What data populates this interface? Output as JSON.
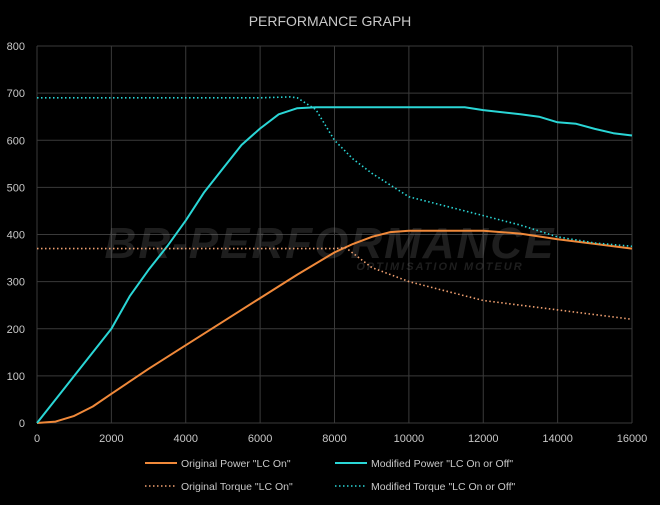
{
  "chart_data": {
    "type": "line",
    "title": "PERFORMANCE GRAPH",
    "xlim": [
      0,
      16000
    ],
    "ylim": [
      0,
      800
    ],
    "x_ticks": [
      0,
      2000,
      4000,
      6000,
      8000,
      10000,
      12000,
      14000,
      16000
    ],
    "y_ticks": [
      0,
      100,
      200,
      300,
      400,
      500,
      600,
      700,
      800
    ],
    "grid": true,
    "legend_position": "bottom",
    "watermark": "BR-PERFORMANCE OPTIMISATION MOTEUR",
    "series": [
      {
        "name": "Original Power \"LC On\"",
        "color": "#f0893a",
        "style": "solid",
        "x": [
          0,
          500,
          1000,
          1500,
          2000,
          3000,
          4000,
          5000,
          6000,
          7000,
          8000,
          8500,
          9000,
          9500,
          10000,
          11000,
          12000,
          13000,
          14000,
          15000,
          16000
        ],
        "y": [
          0,
          3,
          15,
          35,
          62,
          115,
          165,
          215,
          265,
          315,
          362,
          380,
          395,
          405,
          408,
          408,
          408,
          402,
          390,
          380,
          370
        ]
      },
      {
        "name": "Modified Power \"LC On or Off\"",
        "color": "#2ad6d6",
        "style": "solid",
        "x": [
          0,
          1000,
          2000,
          2500,
          3000,
          3500,
          4000,
          4500,
          5000,
          5500,
          6000,
          6500,
          7000,
          7500,
          8000,
          9000,
          10000,
          11000,
          11500,
          12000,
          13000,
          13500,
          14000,
          14500,
          15000,
          15500,
          16000
        ],
        "y": [
          0,
          100,
          200,
          270,
          325,
          375,
          430,
          490,
          540,
          590,
          625,
          655,
          668,
          670,
          670,
          670,
          670,
          670,
          670,
          664,
          655,
          650,
          638,
          635,
          624,
          615,
          610
        ]
      },
      {
        "name": "Original Torque \"LC On\"",
        "color": "#f0a070",
        "style": "dotted",
        "x": [
          0,
          2000,
          4000,
          6000,
          8000,
          8300,
          8500,
          9000,
          10000,
          11000,
          12000,
          13000,
          14000,
          15000,
          16000
        ],
        "y": [
          370,
          370,
          370,
          370,
          370,
          372,
          360,
          330,
          300,
          280,
          260,
          250,
          240,
          230,
          220
        ]
      },
      {
        "name": "Modified Torque \"LC On or Off\"",
        "color": "#2ad6d6",
        "style": "dotted",
        "x": [
          0,
          2000,
          4000,
          6000,
          6800,
          7000,
          7500,
          8000,
          8500,
          9000,
          10000,
          11000,
          12000,
          13000,
          14000,
          15000,
          16000
        ],
        "y": [
          690,
          690,
          690,
          690,
          692,
          690,
          665,
          600,
          560,
          530,
          480,
          460,
          440,
          420,
          395,
          382,
          375
        ]
      }
    ]
  }
}
